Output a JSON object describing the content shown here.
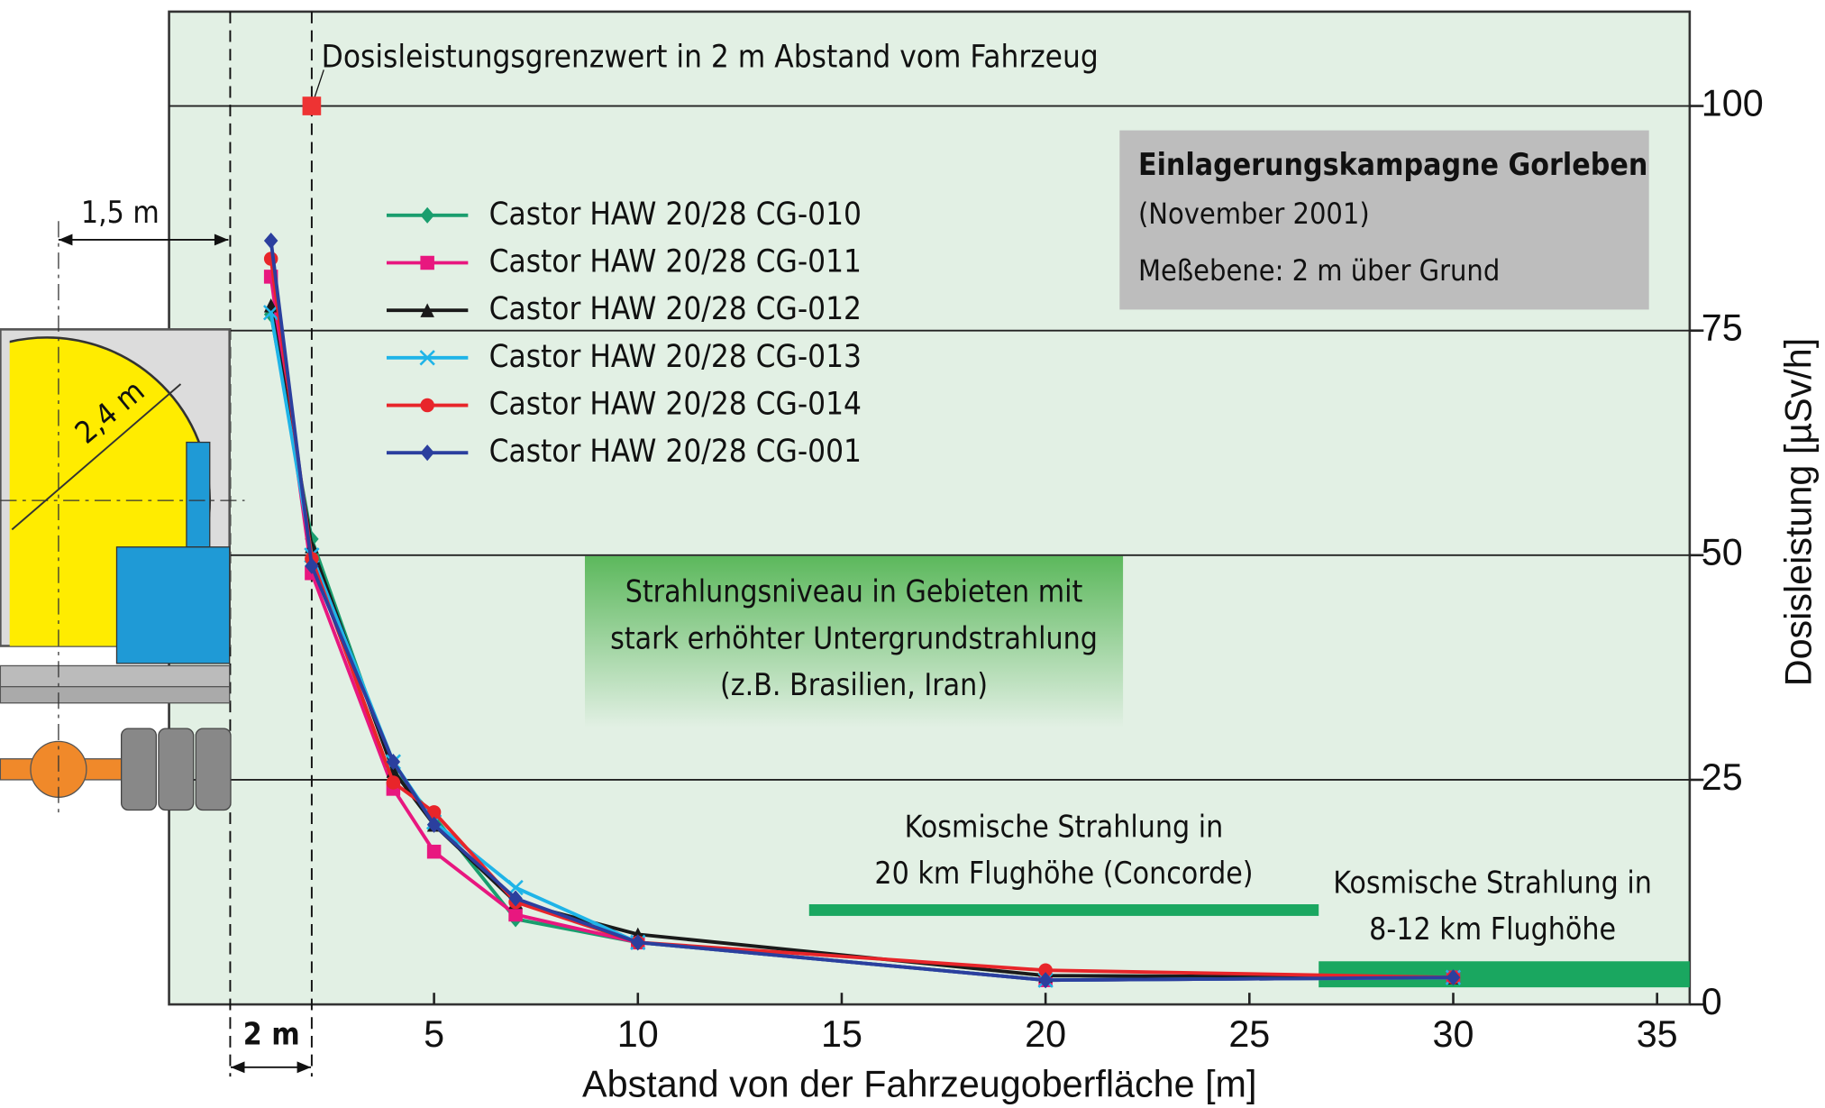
{
  "chart_data": {
    "type": "line",
    "x_label": "Abstand von der Fahrzeugoberfläche [m]",
    "y_label": "Dosisleistung [µSv/h]",
    "x": [
      1,
      2,
      4,
      5,
      7,
      10,
      20,
      30
    ],
    "series": [
      {
        "name": "Castor HAW 20/28 CG-010",
        "color": "#1a9e6e",
        "marker": "diamond",
        "values": [
          76.8,
          51.8,
          26,
          20.9,
          9.5,
          6.9,
          2.7,
          3
        ]
      },
      {
        "name": "Castor HAW 20/28 CG-011",
        "color": "#e8177f",
        "marker": "square",
        "values": [
          81,
          48,
          24,
          17,
          10,
          6.9,
          2.7,
          3
        ]
      },
      {
        "name": "Castor HAW 20/28 CG-012",
        "color": "#1a1a1a",
        "marker": "triangle",
        "values": [
          77.8,
          51,
          26,
          20,
          11.4,
          7.8,
          3.2,
          3
        ]
      },
      {
        "name": "Castor HAW 20/28 CG-013",
        "color": "#1fb4e8",
        "marker": "x",
        "values": [
          77,
          50,
          27,
          20.3,
          13,
          6.9,
          2.7,
          3
        ]
      },
      {
        "name": "Castor HAW 20/28 CG-014",
        "color": "#e8252a",
        "marker": "circle",
        "values": [
          83,
          49.6,
          24.7,
          21.4,
          11.4,
          6.9,
          3.8,
          3
        ]
      },
      {
        "name": "Castor HAW 20/28 CG-001",
        "color": "#2b3f9e",
        "marker": "diamond",
        "values": [
          85,
          48.8,
          27,
          20,
          11.8,
          6.9,
          2.7,
          3
        ]
      }
    ],
    "xlim": [
      -1.5,
      35.8
    ],
    "ylim": [
      0,
      110.5
    ],
    "xticks": [
      5,
      10,
      15,
      20,
      25,
      30,
      35
    ],
    "yticks": [
      0,
      25,
      50,
      75,
      100
    ],
    "grid": true,
    "limit": {
      "text": "Dosisleistungsgrenzwert in 2 m Abstand vom Fahrzeug",
      "x": 2,
      "y": 100,
      "color": "#ee3333"
    },
    "reference_lines": [
      0,
      2
    ],
    "bands": [
      {
        "style": "gradient",
        "lines": [
          "Strahlungsniveau in Gebieten mit",
          "stark erhöhter Untergrundstrahlung",
          "(z.B. Brasilien, Iran)"
        ],
        "x": [
          8.7,
          21.9
        ],
        "y": [
          30.8,
          49.9
        ],
        "color": "#5cb85c"
      },
      {
        "style": "line",
        "lines": [
          "Kosmische Strahlung in",
          "20 km Flughöhe (Concorde)"
        ],
        "x": [
          14.2,
          26.7
        ],
        "y": [
          10.5,
          10.5
        ],
        "color": "#1aa760"
      },
      {
        "style": "rect",
        "lines": [
          "Kosmische Strahlung in",
          "8-12 km Flughöhe"
        ],
        "x": [
          26.7,
          35.8
        ],
        "y": [
          1.9,
          4.8
        ],
        "color": "#1aa760"
      }
    ],
    "info_box": {
      "title": "Einlagerungskampagne Gorleben",
      "lines": [
        "(November 2001)",
        "Meßebene: 2 m über Grund"
      ]
    },
    "dimensions": {
      "clearance": "1,5 m",
      "distance": "2 m",
      "diameter": "2,4 m"
    }
  }
}
